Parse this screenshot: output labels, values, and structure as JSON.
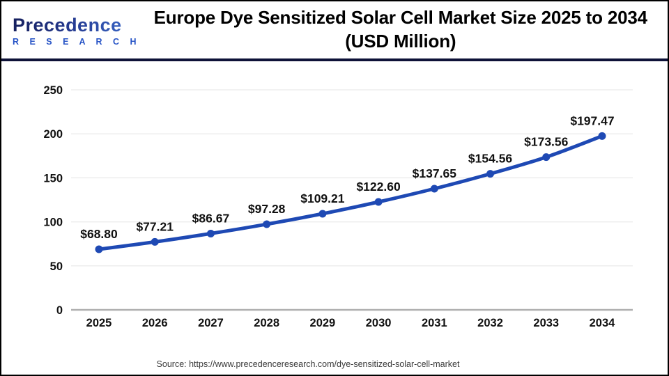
{
  "header": {
    "logo": {
      "brand": "Precedence",
      "sub": "R E S E A R C H"
    },
    "title_line1": "Europe Dye Sensitized Solar Cell Market Size 2025 to 2034",
    "title_line2": "(USD Million)"
  },
  "chart_data": {
    "type": "line",
    "title": "Europe Dye Sensitized Solar Cell Market Size 2025 to 2034 (USD Million)",
    "categories": [
      "2025",
      "2026",
      "2027",
      "2028",
      "2029",
      "2030",
      "2031",
      "2032",
      "2033",
      "2034"
    ],
    "values": [
      68.8,
      77.21,
      86.67,
      97.28,
      109.21,
      122.6,
      137.65,
      154.56,
      173.56,
      197.47
    ],
    "point_labels": [
      "$68.80",
      "$77.21",
      "$86.67",
      "$97.28",
      "$109.21",
      "$122.60",
      "$137.65",
      "$154.56",
      "$173.56",
      "$197.47"
    ],
    "xlabel": "",
    "ylabel": "",
    "ylim": [
      0,
      250
    ],
    "yticks": [
      0,
      50,
      100,
      150,
      200,
      250
    ],
    "grid": true,
    "legend": "none",
    "line_color": "#1e49b4",
    "marker_color": "#1e49b4",
    "gridline_color": "#ededed",
    "baseline_color": "#b0b0b0",
    "label_color": "#111111"
  },
  "footer": {
    "source": "Source: https://www.precedenceresearch.com/dye-sensitized-solar-cell-market"
  }
}
